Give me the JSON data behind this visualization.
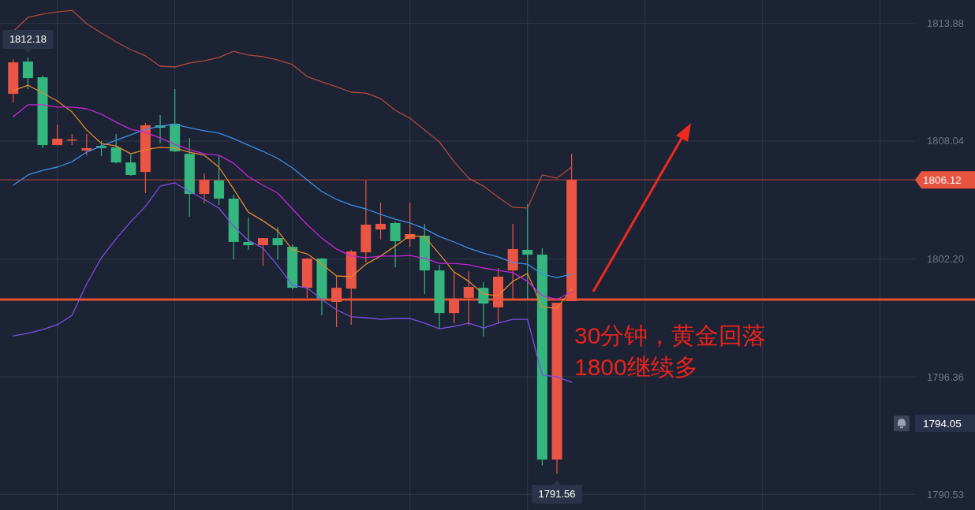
{
  "chart_data": {
    "type": "candlestick",
    "categories": [
      null,
      null,
      null,
      null,
      null,
      null,
      null,
      null,
      null,
      null,
      null,
      null,
      null,
      null,
      null,
      null,
      null,
      null,
      null,
      null,
      null,
      null,
      null,
      null,
      null,
      null,
      null,
      null,
      null,
      null,
      null,
      null,
      null,
      null,
      null,
      null,
      null,
      null,
      null
    ],
    "ohlc": [
      [
        1810.38,
        1812.1,
        1809.95,
        1811.94
      ],
      [
        1811.98,
        1812.18,
        1810.62,
        1811.16
      ],
      [
        1811.2,
        1811.28,
        1807.69,
        1807.84
      ],
      [
        1807.84,
        1808.86,
        1807.84,
        1808.16
      ],
      [
        1808.08,
        1808.39,
        1807.84,
        1808.12
      ],
      [
        1807.57,
        1808.39,
        1807.34,
        1807.69
      ],
      [
        1807.8,
        1808.04,
        1807.3,
        1807.69
      ],
      [
        1807.73,
        1808.39,
        1806.94,
        1806.98
      ],
      [
        1806.98,
        1807.37,
        1806.32,
        1806.36
      ],
      [
        1806.51,
        1808.94,
        1805.46,
        1808.82
      ],
      [
        1808.82,
        1809.33,
        1807.92,
        1808.7
      ],
      [
        1808.9,
        1810.62,
        1807.49,
        1807.53
      ],
      [
        1807.41,
        1808.19,
        1804.29,
        1805.42
      ],
      [
        1805.42,
        1806.44,
        1804.95,
        1806.12
      ],
      [
        1806.09,
        1807.3,
        1804.87,
        1805.19
      ],
      [
        1805.19,
        1805.38,
        1802.18,
        1803.04
      ],
      [
        1803.04,
        1804.25,
        1802.65,
        1802.88
      ],
      [
        1802.88,
        1803.23,
        1801.87,
        1803.23
      ],
      [
        1803.23,
        1803.78,
        1802.18,
        1802.88
      ],
      [
        1802.8,
        1802.92,
        1800.69,
        1800.77
      ],
      [
        1800.77,
        1802.26,
        1800.27,
        1802.22
      ],
      [
        1802.22,
        1802.26,
        1799.41,
        1800.23
      ],
      [
        1800.07,
        1801.36,
        1798.82,
        1800.77
      ],
      [
        1800.73,
        1802.65,
        1798.94,
        1802.57
      ],
      [
        1802.53,
        1806.09,
        1802.02,
        1803.9
      ],
      [
        1803.66,
        1804.99,
        1803.16,
        1803.94
      ],
      [
        1803.98,
        1804.05,
        1801.79,
        1803.08
      ],
      [
        1803.19,
        1804.99,
        1802.8,
        1803.43
      ],
      [
        1803.35,
        1803.94,
        1800.46,
        1801.63
      ],
      [
        1801.63,
        1801.91,
        1798.74,
        1799.52
      ],
      [
        1799.52,
        1801.55,
        1799.02,
        1800.23
      ],
      [
        1800.27,
        1801.59,
        1798.9,
        1800.81
      ],
      [
        1800.77,
        1801.05,
        1798.35,
        1799.99
      ],
      [
        1799.8,
        1801.75,
        1798.98,
        1801.32
      ],
      [
        1801.63,
        1803.94,
        1800.19,
        1802.69
      ],
      [
        1802.65,
        1804.91,
        1800.19,
        1802.41
      ],
      [
        1802.41,
        1802.73,
        1791.98,
        1792.26
      ],
      [
        1792.26,
        1800.03,
        1791.56,
        1800.03
      ],
      [
        1800.11,
        1807.41,
        1800.11,
        1806.12
      ]
    ],
    "colors": [
      "#eb5545",
      "#34b67e",
      "#34b67e",
      "#eb5545",
      "#eb5545",
      "#eb5545",
      "#34b67e",
      "#34b67e",
      "#34b67e",
      "#eb5545",
      "#34b67e",
      "#34b67e",
      "#34b67e",
      "#eb5545",
      "#34b67e",
      "#34b67e",
      "#34b67e",
      "#eb5545",
      "#34b67e",
      "#34b67e",
      "#eb5545",
      "#34b67e",
      "#eb5545",
      "#eb5545",
      "#eb5545",
      "#eb5545",
      "#34b67e",
      "#eb5545",
      "#34b67e",
      "#34b67e",
      "#eb5545",
      "#eb5545",
      "#34b67e",
      "#eb5545",
      "#eb5545",
      "#34b67e",
      "#34b67e",
      "#eb5545",
      "#eb5545"
    ],
    "series": [
      {
        "type": "line",
        "color": "#b0493c",
        "values": [
          1813.47,
          1814.17,
          1814.33,
          1814.44,
          1814.52,
          1813.86,
          1813.39,
          1812.96,
          1812.57,
          1812.26,
          1811.75,
          1811.71,
          1811.91,
          1812.02,
          1812.18,
          1812.49,
          1812.3,
          1812.22,
          1812.06,
          1811.83,
          1811.24,
          1810.97,
          1810.73,
          1810.46,
          1810.42,
          1810.15,
          1809.56,
          1809.17,
          1808.59,
          1808.0,
          1807.02,
          1806.2,
          1805.81,
          1805.26,
          1804.76,
          1804.72,
          1806.36,
          1806.2,
          1806.75
        ]
      },
      {
        "type": "line",
        "color": "#3a8ee6",
        "values": [
          1805.85,
          1806.36,
          1806.59,
          1806.75,
          1807.02,
          1807.49,
          1807.8,
          1808.08,
          1808.35,
          1808.62,
          1808.78,
          1808.86,
          1808.7,
          1808.55,
          1808.43,
          1808.16,
          1807.84,
          1807.53,
          1807.18,
          1806.71,
          1806.12,
          1805.54,
          1805.15,
          1804.87,
          1804.68,
          1804.41,
          1804.17,
          1803.98,
          1803.7,
          1803.31,
          1803.04,
          1802.73,
          1802.49,
          1802.3,
          1802.02,
          1801.94,
          1801.44,
          1801.28,
          1801.44
        ]
      },
      {
        "type": "line",
        "color": "#7d4fe3",
        "values": [
          1798.39,
          1798.51,
          1798.7,
          1798.94,
          1799.41,
          1800.97,
          1802.26,
          1803.19,
          1804.05,
          1804.8,
          1805.81,
          1805.97,
          1805.54,
          1805.15,
          1804.72,
          1803.82,
          1803.12,
          1802.73,
          1801.87,
          1800.89,
          1800.77,
          1800.19,
          1799.68,
          1799.33,
          1799.29,
          1799.21,
          1799.25,
          1799.25,
          1799.02,
          1798.74,
          1798.86,
          1799.02,
          1798.78,
          1799.02,
          1799.21,
          1799.21,
          1796.44,
          1796.36,
          1796.09
        ]
      },
      {
        "type": "line",
        "color": "#e3892c",
        "values": [
          1810.54,
          1810.81,
          1810.42,
          1810.03,
          1809.48,
          1808.59,
          1807.92,
          1807.8,
          1807.41,
          1807.61,
          1807.73,
          1807.69,
          1807.49,
          1807.34,
          1806.75,
          1805.66,
          1804.52,
          1804.09,
          1803.59,
          1802.65,
          1802.45,
          1801.94,
          1801.36,
          1801.32,
          1801.94,
          1802.34,
          1802.84,
          1803.35,
          1803.31,
          1802.45,
          1801.55,
          1801.09,
          1800.46,
          1800.38,
          1801.09,
          1801.48,
          1799.8,
          1799.76,
          1800.69
        ]
      },
      {
        "type": "line",
        "color": "#c425d8",
        "values": [
          1809.25,
          1809.84,
          1809.84,
          1809.72,
          1809.72,
          1809.64,
          1809.37,
          1808.98,
          1808.62,
          1808.47,
          1808.19,
          1807.88,
          1807.61,
          1807.41,
          1807.34,
          1806.94,
          1806.28,
          1805.85,
          1805.46,
          1804.68,
          1803.9,
          1803.23,
          1802.69,
          1802.34,
          1802.26,
          1802.34,
          1802.34,
          1802.37,
          1802.22,
          1801.98,
          1801.98,
          1801.91,
          1801.75,
          1801.63,
          1801.52,
          1801.09,
          1800.38,
          1800.19,
          1800.58
        ]
      }
    ],
    "ylim": [
      1789.76,
      1815.03
    ],
    "yticks": [
      1813.88,
      1808.04,
      {
        "value": 1802.2,
        "label": "1802.20"
      },
      1796.36,
      1790.53
    ],
    "tick_labels": "y",
    "grid": true,
    "marker": "none",
    "ref_lines": [
      {
        "axis": "y",
        "value": 1800.19,
        "color": "#e4512f"
      },
      {
        "axis": "y",
        "value": 1806.12,
        "label": "1806.12",
        "color": "#e8533f"
      }
    ],
    "annotations": [
      {
        "text": "1812.18",
        "y": 1812.18
      },
      {
        "text": "1791.56",
        "y": 1791.56
      },
      "1794.05",
      "30分钟，黄金回落\n1800继续多"
    ]
  }
}
